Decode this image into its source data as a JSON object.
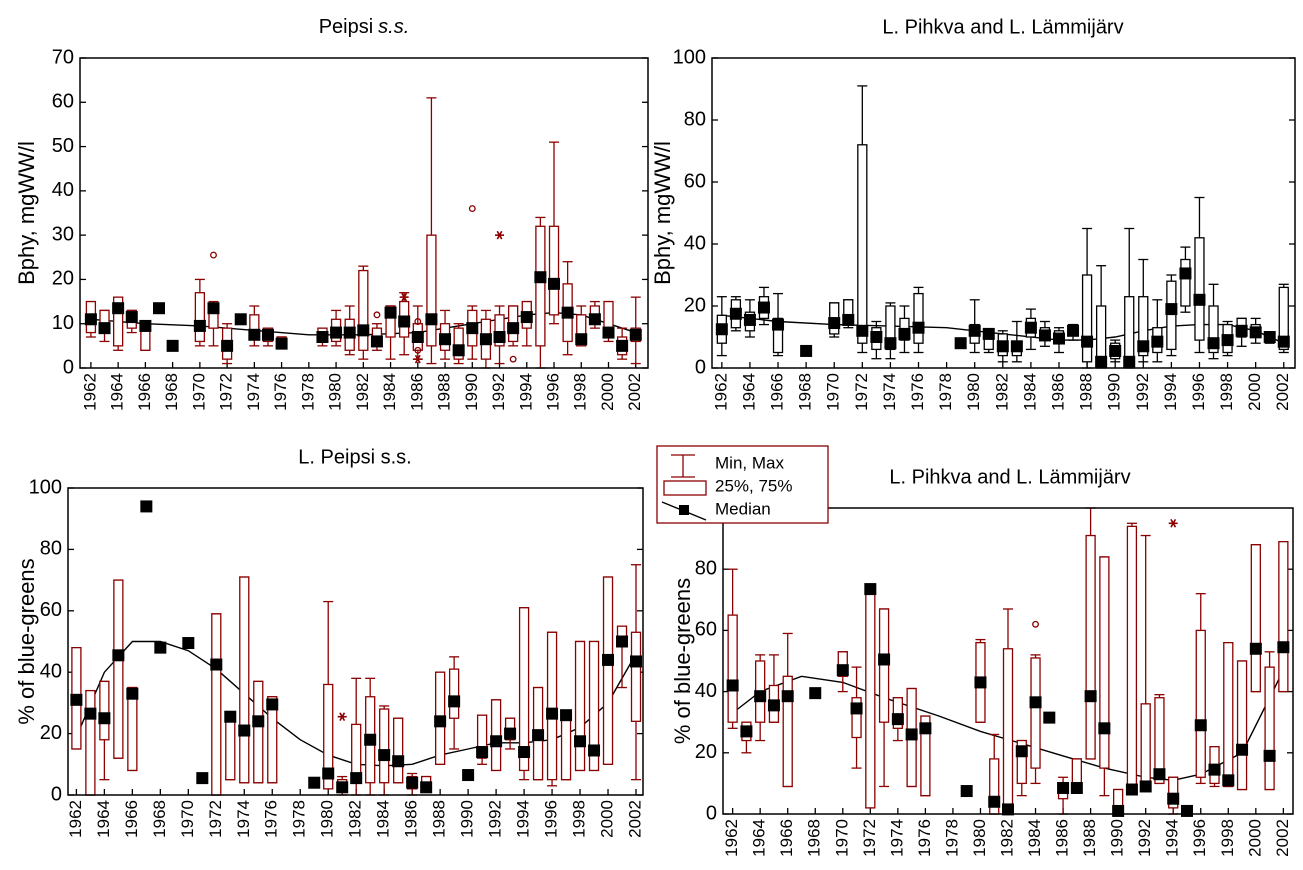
{
  "chart_data": [
    {
      "type": "box",
      "title": "Peipsi",
      "title_italic": "s.s.",
      "ylabel": "Bphy, mgWW/l",
      "box_color": "#8b0000",
      "median_color": "#000000",
      "line_color": "#000000",
      "xlim": [
        1961.2,
        2002.9
      ],
      "xticks": [
        1962,
        1964,
        1966,
        1968,
        1970,
        1972,
        1974,
        1976,
        1978,
        1980,
        1982,
        1984,
        1986,
        1988,
        1990,
        1992,
        1994,
        1996,
        1998,
        2000,
        2002
      ],
      "ylim": [
        0,
        70
      ],
      "yticks": [
        0,
        10,
        20,
        30,
        40,
        50,
        60,
        70
      ],
      "x": [
        1962,
        1963,
        1964,
        1965,
        1966,
        1967,
        1968,
        1970,
        1971,
        1972,
        1973,
        1974,
        1975,
        1976,
        1979,
        1980,
        1981,
        1982,
        1983,
        1984,
        1985,
        1986,
        1987,
        1988,
        1989,
        1990,
        1991,
        1992,
        1993,
        1994,
        1995,
        1996,
        1997,
        1998,
        1999,
        2000,
        2001,
        2002
      ],
      "min": [
        7,
        6,
        4,
        8,
        4,
        null,
        null,
        5,
        5,
        1,
        10,
        5,
        5,
        5,
        5,
        5,
        3,
        2,
        4,
        2,
        3,
        2,
        1,
        2,
        1,
        2,
        0,
        1,
        5,
        5,
        0,
        10,
        3,
        5,
        9,
        6,
        2,
        1
      ],
      "q1": [
        8,
        8,
        5,
        9,
        4,
        null,
        null,
        6,
        9,
        2,
        10,
        7,
        6,
        5,
        6,
        6,
        4,
        4,
        5,
        7,
        7,
        4,
        5,
        4,
        2,
        5,
        2,
        5,
        6,
        9,
        5,
        12,
        6,
        5,
        11,
        7,
        3,
        6
      ],
      "median": [
        11,
        9,
        13.5,
        11.5,
        9.5,
        13.5,
        5,
        9.5,
        13.5,
        5,
        11,
        7.5,
        7.5,
        5.5,
        7,
        8,
        8,
        8.5,
        6,
        12.5,
        10.5,
        7,
        11,
        6.5,
        4,
        9,
        6.5,
        7,
        9,
        11.5,
        20.5,
        19,
        12.5,
        6.5,
        11,
        8,
        5,
        7.5
      ],
      "q3": [
        15,
        13,
        16,
        13,
        10,
        null,
        null,
        17,
        14,
        9,
        12,
        12,
        9,
        7,
        9,
        11,
        11,
        22,
        9,
        14,
        15,
        10,
        30,
        10,
        9,
        13,
        11,
        12,
        14,
        15,
        32,
        32,
        19,
        12,
        14,
        15,
        7,
        9
      ],
      "max": [
        15,
        13,
        16,
        13,
        10,
        null,
        null,
        20,
        15,
        10,
        12,
        14,
        9,
        7,
        9,
        13,
        14,
        23,
        10,
        14,
        17,
        14,
        61,
        13,
        10,
        14,
        13,
        14,
        14,
        15,
        34,
        51,
        24,
        14,
        15,
        15,
        9,
        16
      ],
      "outliers": {
        "x": [
          1971,
          1983,
          1985,
          1986,
          1986,
          1986,
          1990,
          1992,
          1993
        ],
        "y": [
          25.5,
          12,
          16,
          10.5,
          4,
          2,
          36,
          30,
          2
        ],
        "marker": [
          "circle",
          "circle",
          "star",
          "circle",
          "circle",
          "star",
          "circle",
          "star",
          "circle"
        ]
      },
      "trend": {
        "x": [
          1962,
          1966,
          1970,
          1974,
          1978,
          1982,
          1986,
          1990,
          1994,
          1996,
          1998,
          2000,
          2002
        ],
        "y": [
          11,
          10,
          9.5,
          8.5,
          7.5,
          7.5,
          8,
          10,
          12,
          12.5,
          12,
          10,
          8
        ]
      }
    },
    {
      "type": "box",
      "title": "L. Pihkva and L. Lämmijärv",
      "ylabel": "Bphy, mgWW/l",
      "box_color": "#000000",
      "median_color": "#000000",
      "line_color": "#000000",
      "xlim": [
        1961.3,
        2002.8
      ],
      "xticks": [
        1962,
        1964,
        1966,
        1968,
        1970,
        1972,
        1974,
        1976,
        1978,
        1980,
        1982,
        1984,
        1986,
        1988,
        1990,
        1992,
        1994,
        1996,
        1998,
        2000,
        2002
      ],
      "ylim": [
        0,
        100
      ],
      "yticks": [
        0,
        20,
        40,
        60,
        80,
        100
      ],
      "x": [
        1962,
        1963,
        1964,
        1965,
        1966,
        1968,
        1970,
        1971,
        1972,
        1973,
        1974,
        1975,
        1976,
        1979,
        1980,
        1981,
        1982,
        1983,
        1984,
        1985,
        1986,
        1987,
        1988,
        1989,
        1990,
        1991,
        1992,
        1993,
        1994,
        1995,
        1996,
        1997,
        1998,
        1999,
        2000,
        2001,
        2002
      ],
      "min": [
        4,
        12,
        10,
        14,
        4,
        null,
        10,
        13,
        5,
        3,
        3,
        5,
        5,
        null,
        5,
        5,
        2,
        2,
        6,
        7,
        5,
        9,
        0,
        0,
        2,
        0,
        2,
        2,
        4,
        18,
        5,
        3,
        4,
        7,
        8,
        8,
        5
      ],
      "q1": [
        8,
        13,
        12,
        16,
        5,
        null,
        11,
        14,
        8,
        6,
        6,
        9,
        8,
        null,
        8,
        6,
        4,
        4,
        10,
        9,
        8,
        11,
        2,
        1,
        3,
        1,
        4,
        5,
        6,
        20,
        9,
        5,
        5,
        10,
        10,
        9,
        6
      ],
      "median": [
        12.5,
        17.5,
        15.5,
        19.5,
        14,
        5.5,
        14.5,
        15.5,
        12,
        10,
        8,
        11,
        13,
        8,
        12,
        11,
        7,
        7,
        13,
        10.5,
        9.5,
        12,
        8.5,
        2,
        5.5,
        2,
        7,
        8.5,
        19,
        30.5,
        22,
        8,
        9,
        12,
        11.5,
        10,
        8.5
      ],
      "q3": [
        17,
        22,
        18,
        23,
        16,
        null,
        21,
        22,
        72,
        13,
        20,
        16,
        24,
        null,
        14,
        11,
        11,
        8,
        16,
        13,
        12,
        14,
        30,
        20,
        8,
        23,
        23,
        13,
        28,
        35,
        42,
        20,
        14,
        16,
        14,
        10,
        26
      ],
      "max": [
        23,
        23,
        22,
        26,
        24,
        null,
        21,
        22,
        91,
        15,
        21,
        20,
        26,
        null,
        22,
        11,
        12,
        15,
        19,
        15,
        13,
        14,
        45,
        33,
        9,
        45,
        35,
        22,
        30,
        39,
        55,
        27,
        15,
        16,
        16,
        11,
        27
      ],
      "trend": {
        "x": [
          1962,
          1966,
          1970,
          1974,
          1978,
          1982,
          1986,
          1988,
          1990,
          1992,
          1994,
          1996,
          1998,
          2000,
          2002
        ],
        "y": [
          17,
          15,
          14,
          13.5,
          13,
          11,
          9,
          9,
          10,
          12,
          13.5,
          14,
          14,
          12,
          8
        ]
      }
    },
    {
      "type": "box",
      "title": "L. Peipsi s.s.",
      "ylabel": "% of blue-greens",
      "box_color": "#8b0000",
      "median_color": "#000000",
      "line_color": "#000000",
      "xlim": [
        1961.4,
        2002.5
      ],
      "xticks": [
        1962,
        1964,
        1966,
        1968,
        1970,
        1972,
        1974,
        1976,
        1978,
        1980,
        1982,
        1984,
        1986,
        1988,
        1990,
        1992,
        1994,
        1996,
        1998,
        2000,
        2002
      ],
      "ylim": [
        0,
        100
      ],
      "yticks": [
        0,
        20,
        40,
        60,
        80,
        100
      ],
      "x": [
        1962,
        1963,
        1964,
        1965,
        1966,
        1967,
        1968,
        1970,
        1971,
        1972,
        1973,
        1974,
        1975,
        1976,
        1979,
        1980,
        1981,
        1982,
        1983,
        1984,
        1985,
        1986,
        1987,
        1988,
        1989,
        1990,
        1991,
        1992,
        1993,
        1994,
        1995,
        1996,
        1997,
        1998,
        1999,
        2000,
        2001,
        2002
      ],
      "min": [
        15,
        0,
        5,
        12,
        8,
        null,
        null,
        null,
        5,
        0,
        5,
        4,
        4,
        4,
        null,
        2,
        0,
        0,
        0,
        0,
        4,
        0,
        2,
        10,
        15,
        null,
        10,
        8,
        15,
        5,
        5,
        3,
        5,
        8,
        8,
        10,
        35,
        5
      ],
      "q1": [
        15,
        0,
        18,
        12,
        8,
        null,
        null,
        null,
        6,
        0,
        5,
        4,
        4,
        4,
        null,
        2,
        1,
        4,
        4,
        4,
        4,
        2,
        2,
        10,
        25,
        null,
        12,
        8,
        18,
        8,
        5,
        5,
        5,
        8,
        8,
        10,
        50,
        24
      ],
      "median": [
        31,
        26.5,
        25,
        45.5,
        33,
        94,
        48,
        49.5,
        5.5,
        42.5,
        25.5,
        21,
        24,
        29.5,
        4,
        7,
        2.5,
        5.5,
        18,
        13,
        11,
        4,
        2.5,
        24,
        30.5,
        6.5,
        14,
        17.5,
        20,
        14,
        19.5,
        26.5,
        26,
        17.5,
        14.5,
        44,
        50,
        43.5
      ],
      "q3": [
        48,
        34,
        37,
        70,
        35,
        null,
        null,
        null,
        7,
        59,
        27,
        71,
        37,
        32,
        null,
        36,
        5,
        23,
        32,
        28,
        25,
        6,
        6,
        40,
        41,
        null,
        26,
        31,
        25,
        61,
        35,
        53,
        26,
        50,
        50,
        71,
        55,
        53
      ],
      "max": [
        48,
        34,
        37,
        70,
        35,
        null,
        null,
        null,
        7,
        59,
        27,
        71,
        37,
        32,
        null,
        63,
        6,
        38,
        38,
        29,
        25,
        7,
        6,
        40,
        45,
        null,
        26,
        31,
        25,
        61,
        35,
        53,
        26,
        50,
        50,
        71,
        55,
        75
      ],
      "outliers": {
        "x": [
          1981
        ],
        "y": [
          25.5
        ],
        "marker": [
          "star"
        ]
      },
      "trend": {
        "x": [
          1962,
          1964,
          1966,
          1968,
          1970,
          1972,
          1974,
          1976,
          1978,
          1980,
          1982,
          1984,
          1986,
          1988,
          1990,
          1992,
          1994,
          1996,
          1998,
          2000,
          2002
        ],
        "y": [
          19,
          40,
          50,
          50,
          47,
          41,
          33,
          25,
          18,
          13,
          10,
          9.5,
          10,
          13,
          15,
          17,
          17,
          18,
          22,
          30,
          46
        ]
      }
    },
    {
      "type": "box",
      "title": "L. Pihkva and L. Lämmijärv",
      "ylabel": "% of blue-greens",
      "box_color": "#8b0000",
      "median_color": "#000000",
      "line_color": "#000000",
      "xlim": [
        1961.3,
        2002.7
      ],
      "xticks": [
        1962,
        1964,
        1966,
        1968,
        1970,
        1972,
        1974,
        1976,
        1978,
        1980,
        1982,
        1984,
        1986,
        1988,
        1990,
        1992,
        1994,
        1996,
        1998,
        2000,
        2002
      ],
      "ylim": [
        0,
        100
      ],
      "yticks": [
        0,
        20,
        40,
        60,
        80
      ],
      "x": [
        1962,
        1963,
        1964,
        1965,
        1966,
        1968,
        1970,
        1971,
        1972,
        1973,
        1974,
        1975,
        1976,
        1979,
        1980,
        1981,
        1982,
        1983,
        1984,
        1985,
        1986,
        1987,
        1988,
        1989,
        1990,
        1991,
        1992,
        1993,
        1994,
        1995,
        1996,
        1997,
        1998,
        1999,
        2000,
        2001,
        2002
      ],
      "min": [
        28,
        20,
        24,
        30,
        9,
        null,
        40,
        15,
        2,
        9,
        24,
        9,
        6,
        null,
        30,
        0,
        0,
        6,
        10,
        null,
        0,
        8,
        18,
        6,
        0,
        8,
        8,
        10,
        0,
        0,
        10,
        9,
        9,
        8,
        40,
        8,
        40
      ],
      "q1": [
        30,
        24,
        30,
        30,
        9,
        null,
        45,
        25,
        2,
        30,
        28,
        9,
        6,
        null,
        30,
        0,
        0,
        10,
        15,
        null,
        5,
        8,
        18,
        15,
        0,
        8,
        8,
        10,
        2,
        0,
        12,
        10,
        9,
        8,
        40,
        8,
        40
      ],
      "median": [
        42,
        27,
        38.5,
        35.5,
        38.5,
        39.5,
        47,
        34.5,
        73.5,
        50.5,
        31,
        26,
        28,
        7.5,
        43,
        4,
        1.5,
        20.5,
        36.5,
        31.5,
        8.5,
        8.5,
        38.5,
        28,
        1,
        8,
        9,
        13,
        5,
        1,
        29,
        14.5,
        11,
        21,
        54,
        19,
        54.5
      ],
      "q3": [
        65,
        30,
        50,
        42,
        45,
        null,
        53,
        38,
        75,
        67,
        38,
        41,
        32,
        null,
        56,
        18,
        54,
        24,
        51,
        null,
        10,
        18,
        91,
        84,
        8,
        94,
        36,
        38,
        12,
        1,
        60,
        22,
        56,
        50,
        88,
        48,
        89
      ],
      "max": [
        80,
        30,
        52,
        52,
        59,
        null,
        53,
        48,
        75,
        67,
        38,
        41,
        32,
        null,
        57,
        26,
        67,
        24,
        52,
        null,
        12,
        18,
        100,
        84,
        8,
        95,
        91,
        39,
        12,
        1,
        72,
        22,
        56,
        50,
        88,
        53,
        89
      ],
      "outliers": {
        "x": [
          1984,
          1994
        ],
        "y": [
          62,
          95
        ],
        "marker": [
          "circle",
          "star"
        ]
      },
      "trend": {
        "x": [
          1962,
          1964,
          1967,
          1970,
          1973,
          1977,
          1980,
          1983,
          1986,
          1989,
          1992,
          1994,
          1996,
          1999,
          2002
        ],
        "y": [
          33,
          40,
          45,
          43,
          38,
          32,
          27,
          23,
          19,
          15,
          12,
          11,
          13,
          20,
          47
        ]
      },
      "legend_labels": [
        "Min, Max",
        "25%, 75%",
        "Median"
      ]
    }
  ]
}
